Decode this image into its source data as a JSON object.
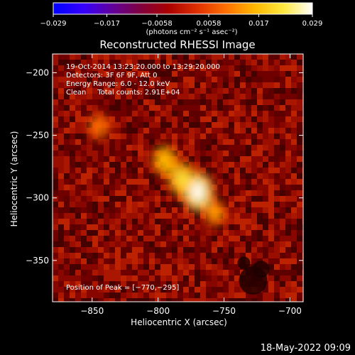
{
  "colorbar": {
    "ticks": [
      "−0.029",
      "−0.017",
      "−0.0058",
      "0.0058",
      "0.017",
      "0.029"
    ],
    "tick_values": [
      -0.029,
      -0.017,
      -0.0058,
      0.0058,
      0.017,
      0.029
    ],
    "range": [
      -0.029,
      0.029
    ],
    "units": "(photons cm⁻² s⁻¹ asec⁻²)",
    "colormap": [
      "#0000ff",
      "#3300ff",
      "#6000a0",
      "#800040",
      "#aa0000",
      "#e03000",
      "#ff7000",
      "#ffb800",
      "#ffe840",
      "#ffffff"
    ]
  },
  "plot": {
    "title": "Reconstructed RHESSI Image",
    "info_lines": [
      "19-Oct-2014 13:23:20.000 to 13:29:20.000",
      "Detectors: 3F 6F 9F, Att 0",
      "Energy Range: 6.0 - 12.0 keV",
      "Clean     Total counts: 2.91E+04"
    ],
    "peak_label": "Position of Peak = [−770,−295]"
  },
  "footer": {
    "timestamp": "18-May-2022 09:09"
  },
  "chart_data": {
    "type": "heatmap",
    "title": "Reconstructed RHESSI Image",
    "xlabel": "Heliocentric X (arcsec)",
    "ylabel": "Heliocentric Y (arcsec)",
    "xlim": [
      -880,
      -690
    ],
    "ylim": [
      -383,
      -185
    ],
    "x_ticks": [
      -850,
      -800,
      -750,
      -700
    ],
    "x_tick_labels": [
      "−850",
      "−800",
      "−750",
      "−700"
    ],
    "y_ticks": [
      -200,
      -250,
      -300,
      -350
    ],
    "y_tick_labels": [
      "−200",
      "−250",
      "−300",
      "−350"
    ],
    "peak": {
      "x": -770,
      "y": -295
    },
    "sources": [
      {
        "x": -770,
        "y": -295,
        "value": 0.029
      },
      {
        "x": -782,
        "y": -285,
        "value": 0.022
      },
      {
        "x": -795,
        "y": -270,
        "value": 0.016
      },
      {
        "x": -757,
        "y": -312,
        "value": 0.013
      },
      {
        "x": -845,
        "y": -243,
        "value": 0.011
      }
    ]
  }
}
